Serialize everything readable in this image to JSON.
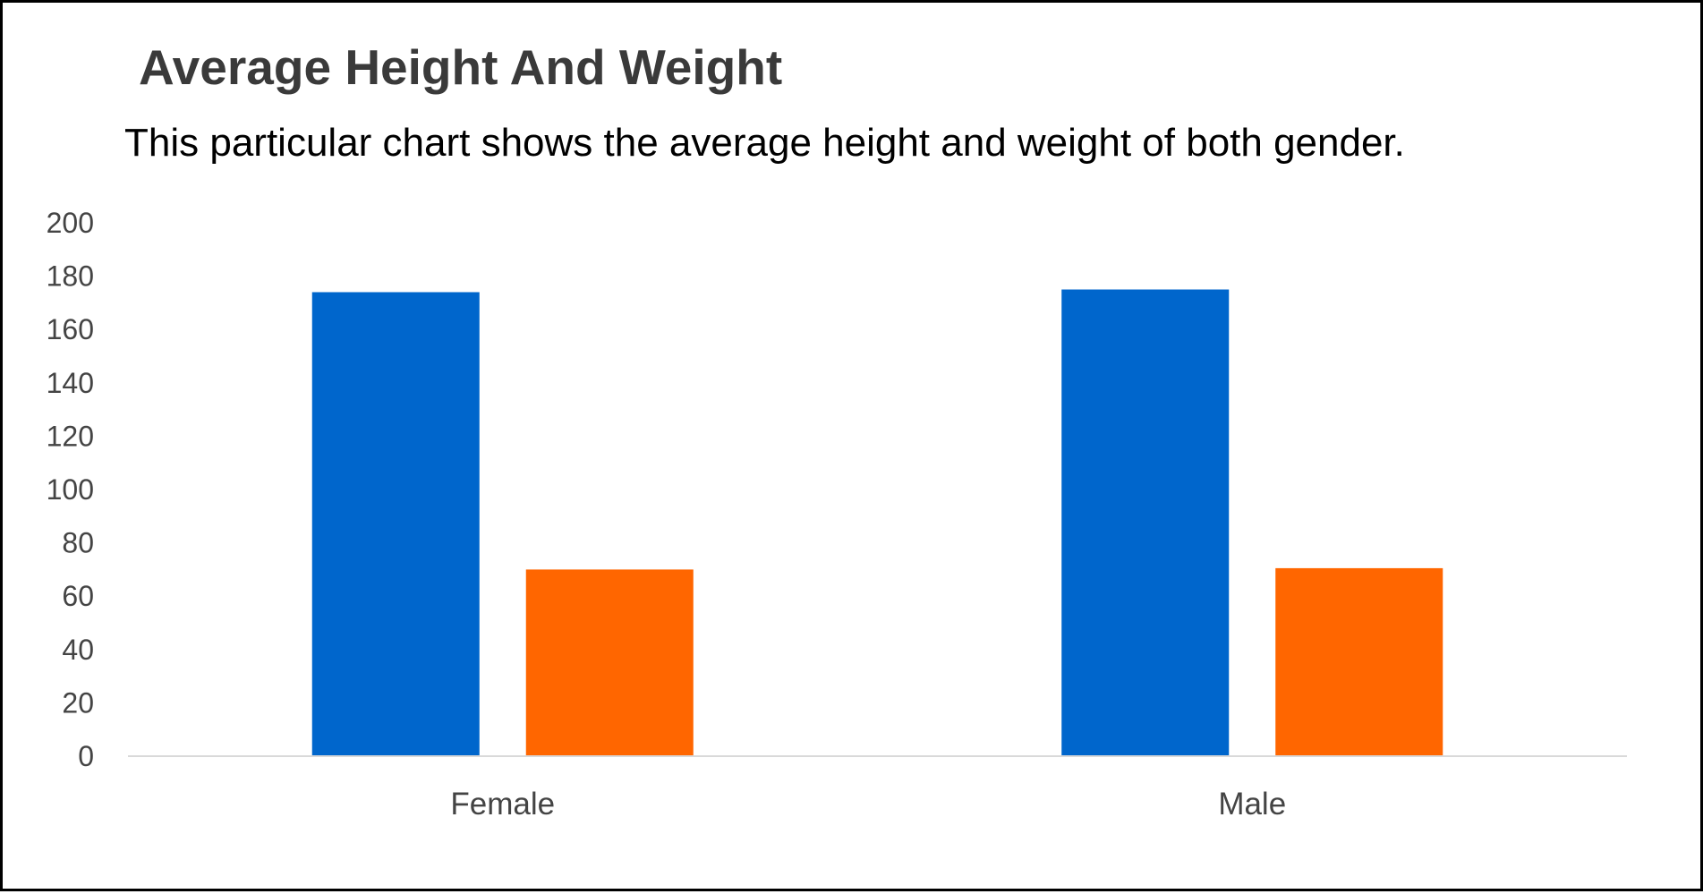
{
  "chart_data": {
    "type": "bar",
    "title": "Average Height And Weight",
    "subtitle": "This particular chart shows the average height and weight of both gender.",
    "categories": [
      "Female",
      "Male"
    ],
    "series": [
      {
        "values": [
          174,
          175
        ],
        "color": "#0066cc"
      },
      {
        "values": [
          70,
          70.5
        ],
        "color": "#ff6600"
      }
    ],
    "xlabel": "",
    "ylabel": "",
    "ylim": [
      0,
      200
    ],
    "yticks": [
      "0",
      "20",
      "40",
      "60",
      "80",
      "100",
      "120",
      "140",
      "160",
      "180",
      "200"
    ],
    "grid": false,
    "legend": "none"
  }
}
